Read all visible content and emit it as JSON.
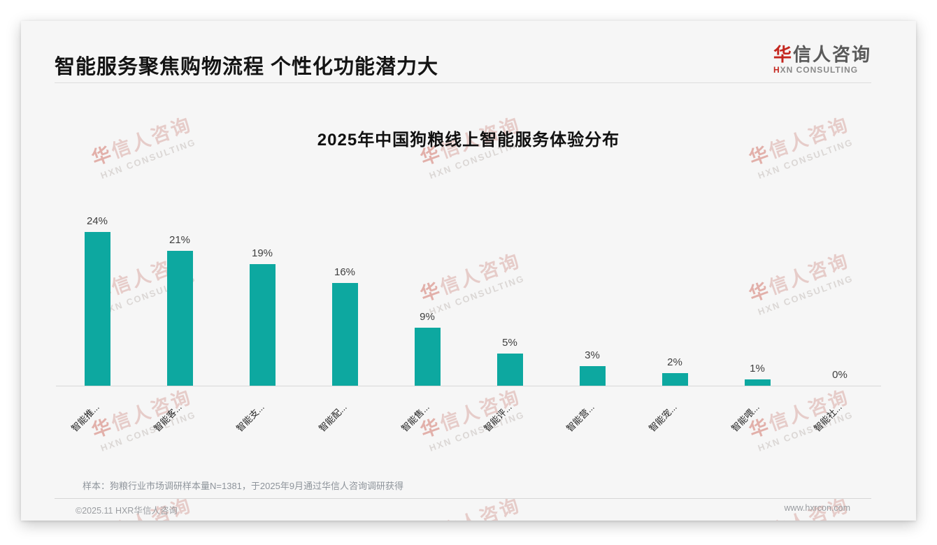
{
  "slide": {
    "header": {
      "title": "智能服务聚焦购物流程 个性化功能潜力大",
      "logo": {
        "zh_accent": "华",
        "zh_rest": "信人咨询",
        "en_accent": "H",
        "en_rest": "XN CONSULTING"
      }
    },
    "watermark": {
      "line1_zh_accent": "华",
      "line1_zh_rest": "信人咨询",
      "line2_en": "HXN CONSULTING"
    },
    "notes": {
      "sample": "样本：狗粮行业市场调研样本量N=1381，于2025年9月通过华信人咨询调研获得"
    },
    "footer": {
      "copyright": "©2025.11 HXR华信人咨询",
      "website": "www.hxrcon.com"
    },
    "colors": {
      "bar": "#0da8a0",
      "accent_red": "#c4271f",
      "card_bg": "#f6f6f6"
    }
  },
  "chart_data": {
    "type": "bar",
    "title": "2025年中国狗粮线上智能服务体验分布",
    "categories": [
      "智能推...",
      "智能客...",
      "智能支...",
      "智能配...",
      "智能售...",
      "智能评...",
      "智能营...",
      "智能宠...",
      "智能喂...",
      "智能社..."
    ],
    "values": [
      24,
      21,
      19,
      16,
      9,
      5,
      3,
      2,
      1,
      0
    ],
    "value_labels": [
      "24%",
      "21%",
      "19%",
      "16%",
      "9%",
      "5%",
      "3%",
      "2%",
      "1%",
      "0%"
    ],
    "unit": "%",
    "ylim": [
      0,
      25
    ],
    "grid": false,
    "legend": "none",
    "bar_color": "#0da8a0",
    "xlabel_rotation_deg": -45
  }
}
